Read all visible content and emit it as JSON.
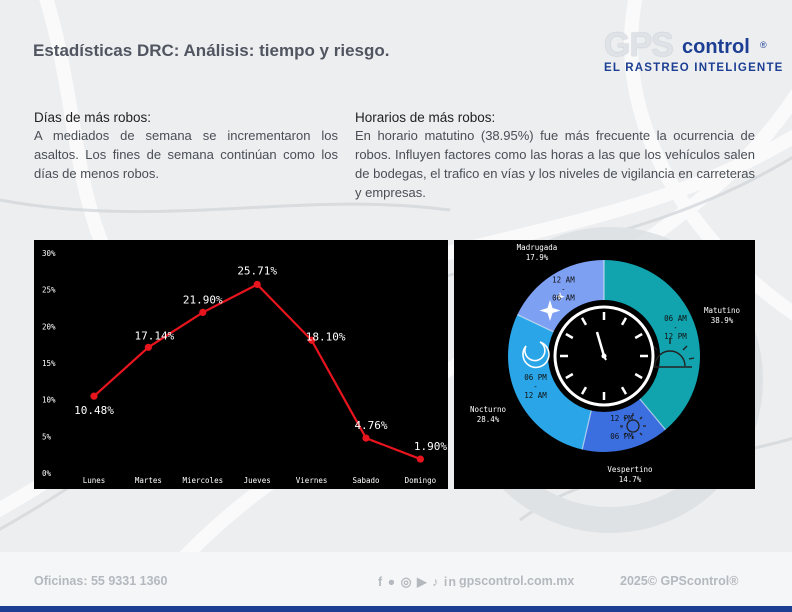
{
  "header": {
    "title_bold": "Estadísticas DRC:",
    "title_rest": " Análisis: tiempo y riesgo."
  },
  "logo": {
    "gps": "GPS",
    "control": "control",
    "registered": "®",
    "tagline": "EL RASTREO INTELIGENTE"
  },
  "days": {
    "heading": "Días de más robos:",
    "body": "A mediados de semana se incrementaron los asaltos. Los fines de semana continúan como los días de menos robos."
  },
  "hours": {
    "heading": "Horarios de más robos:",
    "body": "En horario matutino (38.95%) fue más frecuente la ocurrencia de robos. Influyen factores como las horas a las que los vehículos salen de bodegas, el trafico en vías y los niveles de vigilancia en carreteras y empresas."
  },
  "chart_data": [
    {
      "type": "line",
      "categories": [
        "Lunes",
        "Martes",
        "Miercoles",
        "Jueves",
        "Viernes",
        "Sabado",
        "Domingo"
      ],
      "values": [
        10.48,
        17.14,
        21.9,
        25.71,
        18.1,
        4.76,
        1.9
      ],
      "data_labels": [
        "10.48%",
        "17.14%",
        "21.90%",
        "25.71%",
        "18.10%",
        "4.76%",
        "1.90%"
      ],
      "y_ticks": [
        "0%",
        "5%",
        "10%",
        "15%",
        "20%",
        "25%",
        "30%"
      ],
      "ylim": [
        0,
        30
      ],
      "title": "",
      "xlabel": "",
      "ylabel": "",
      "grid": false,
      "line_color": "#e8141e",
      "background": "#000000"
    },
    {
      "type": "pie",
      "style": "donut",
      "slices": [
        {
          "label": "Matutino",
          "value": 38.9,
          "value_label": "38.9%",
          "range": [
            "06 AM",
            "-",
            "12 PM"
          ],
          "color": "#11a3ae"
        },
        {
          "label": "Vespertino",
          "value": 14.7,
          "value_label": "14.7%",
          "range": [
            "12 PM",
            "-",
            "06 PM"
          ],
          "color": "#3b6fe0"
        },
        {
          "label": "Nocturno",
          "value": 28.4,
          "value_label": "28.4%",
          "range": [
            "06 PM",
            "-",
            "12 AM"
          ],
          "color": "#2aa6e8"
        },
        {
          "label": "Madrugada",
          "value": 17.9,
          "value_label": "17.9%",
          "range": [
            "12 AM",
            "-",
            "06 AM"
          ],
          "color": "#7ea0f2"
        }
      ],
      "background": "#000000"
    }
  ],
  "footer": {
    "offices": "Oficinas: 55 9331 1360",
    "website": "gpscontrol.com.mx",
    "copyright": "2025© GPScontrol®",
    "social_icons": [
      "facebook-icon",
      "twitter-icon",
      "instagram-icon",
      "youtube-icon",
      "tiktok-icon",
      "linkedin-icon"
    ],
    "social_glyphs": "f ● ◎ ▶ ♪ in"
  },
  "colors": {
    "brand_blue": "#1d3f93",
    "title_gray": "#505560"
  }
}
